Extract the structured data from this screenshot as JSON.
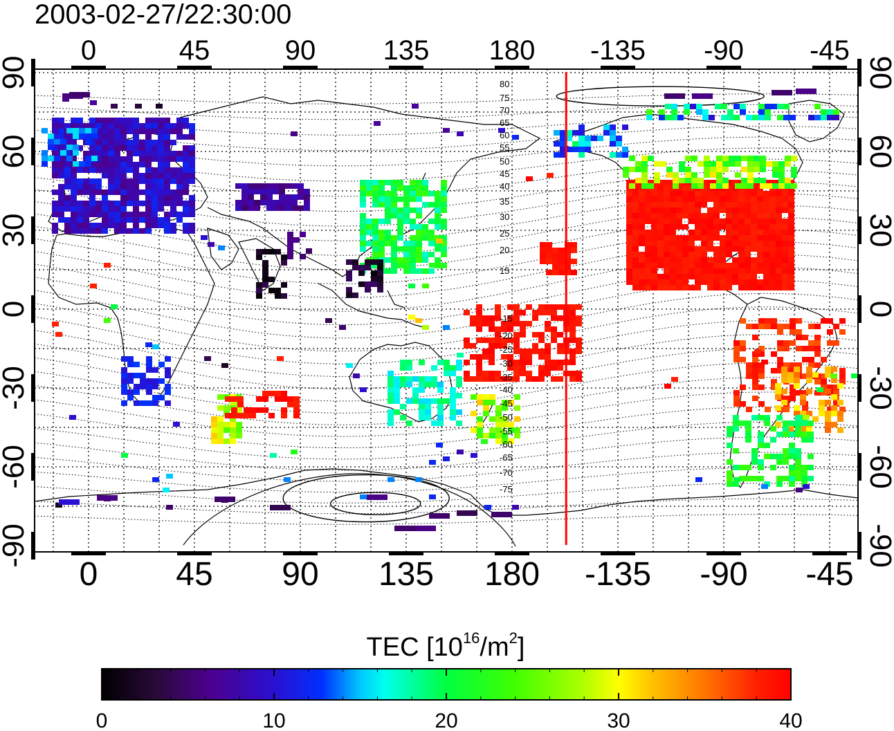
{
  "title": "2003-02-27/22:30:00",
  "map": {
    "lon_ticks": [
      "0",
      "45",
      "90",
      "135",
      "180",
      "-135",
      "-90",
      "-45"
    ],
    "lat_ticks": [
      "90",
      "60",
      "30",
      "0",
      "-30",
      "-60",
      "-90"
    ],
    "terminator_longitude": -157,
    "north_contour_labels": [
      "80",
      "75",
      "70",
      "65",
      "60",
      "55",
      "50",
      "45",
      "40",
      "35",
      "30",
      "25",
      "20",
      "15"
    ],
    "south_contour_labels": [
      "-15",
      "-20",
      "-25",
      "-30",
      "-35",
      "-40",
      "-45",
      "-50",
      "-55",
      "-60",
      "-65",
      "-70",
      "-75"
    ]
  },
  "colorbar": {
    "title_prefix": "TEC  [10",
    "title_exp1": "16",
    "title_mid": "/m",
    "title_exp2": "2",
    "title_suffix": "]",
    "ticks": [
      "0",
      "10",
      "20",
      "30",
      "40"
    ],
    "min": 0,
    "max": 40
  },
  "colors": {
    "terminator": "#ff0000"
  }
}
